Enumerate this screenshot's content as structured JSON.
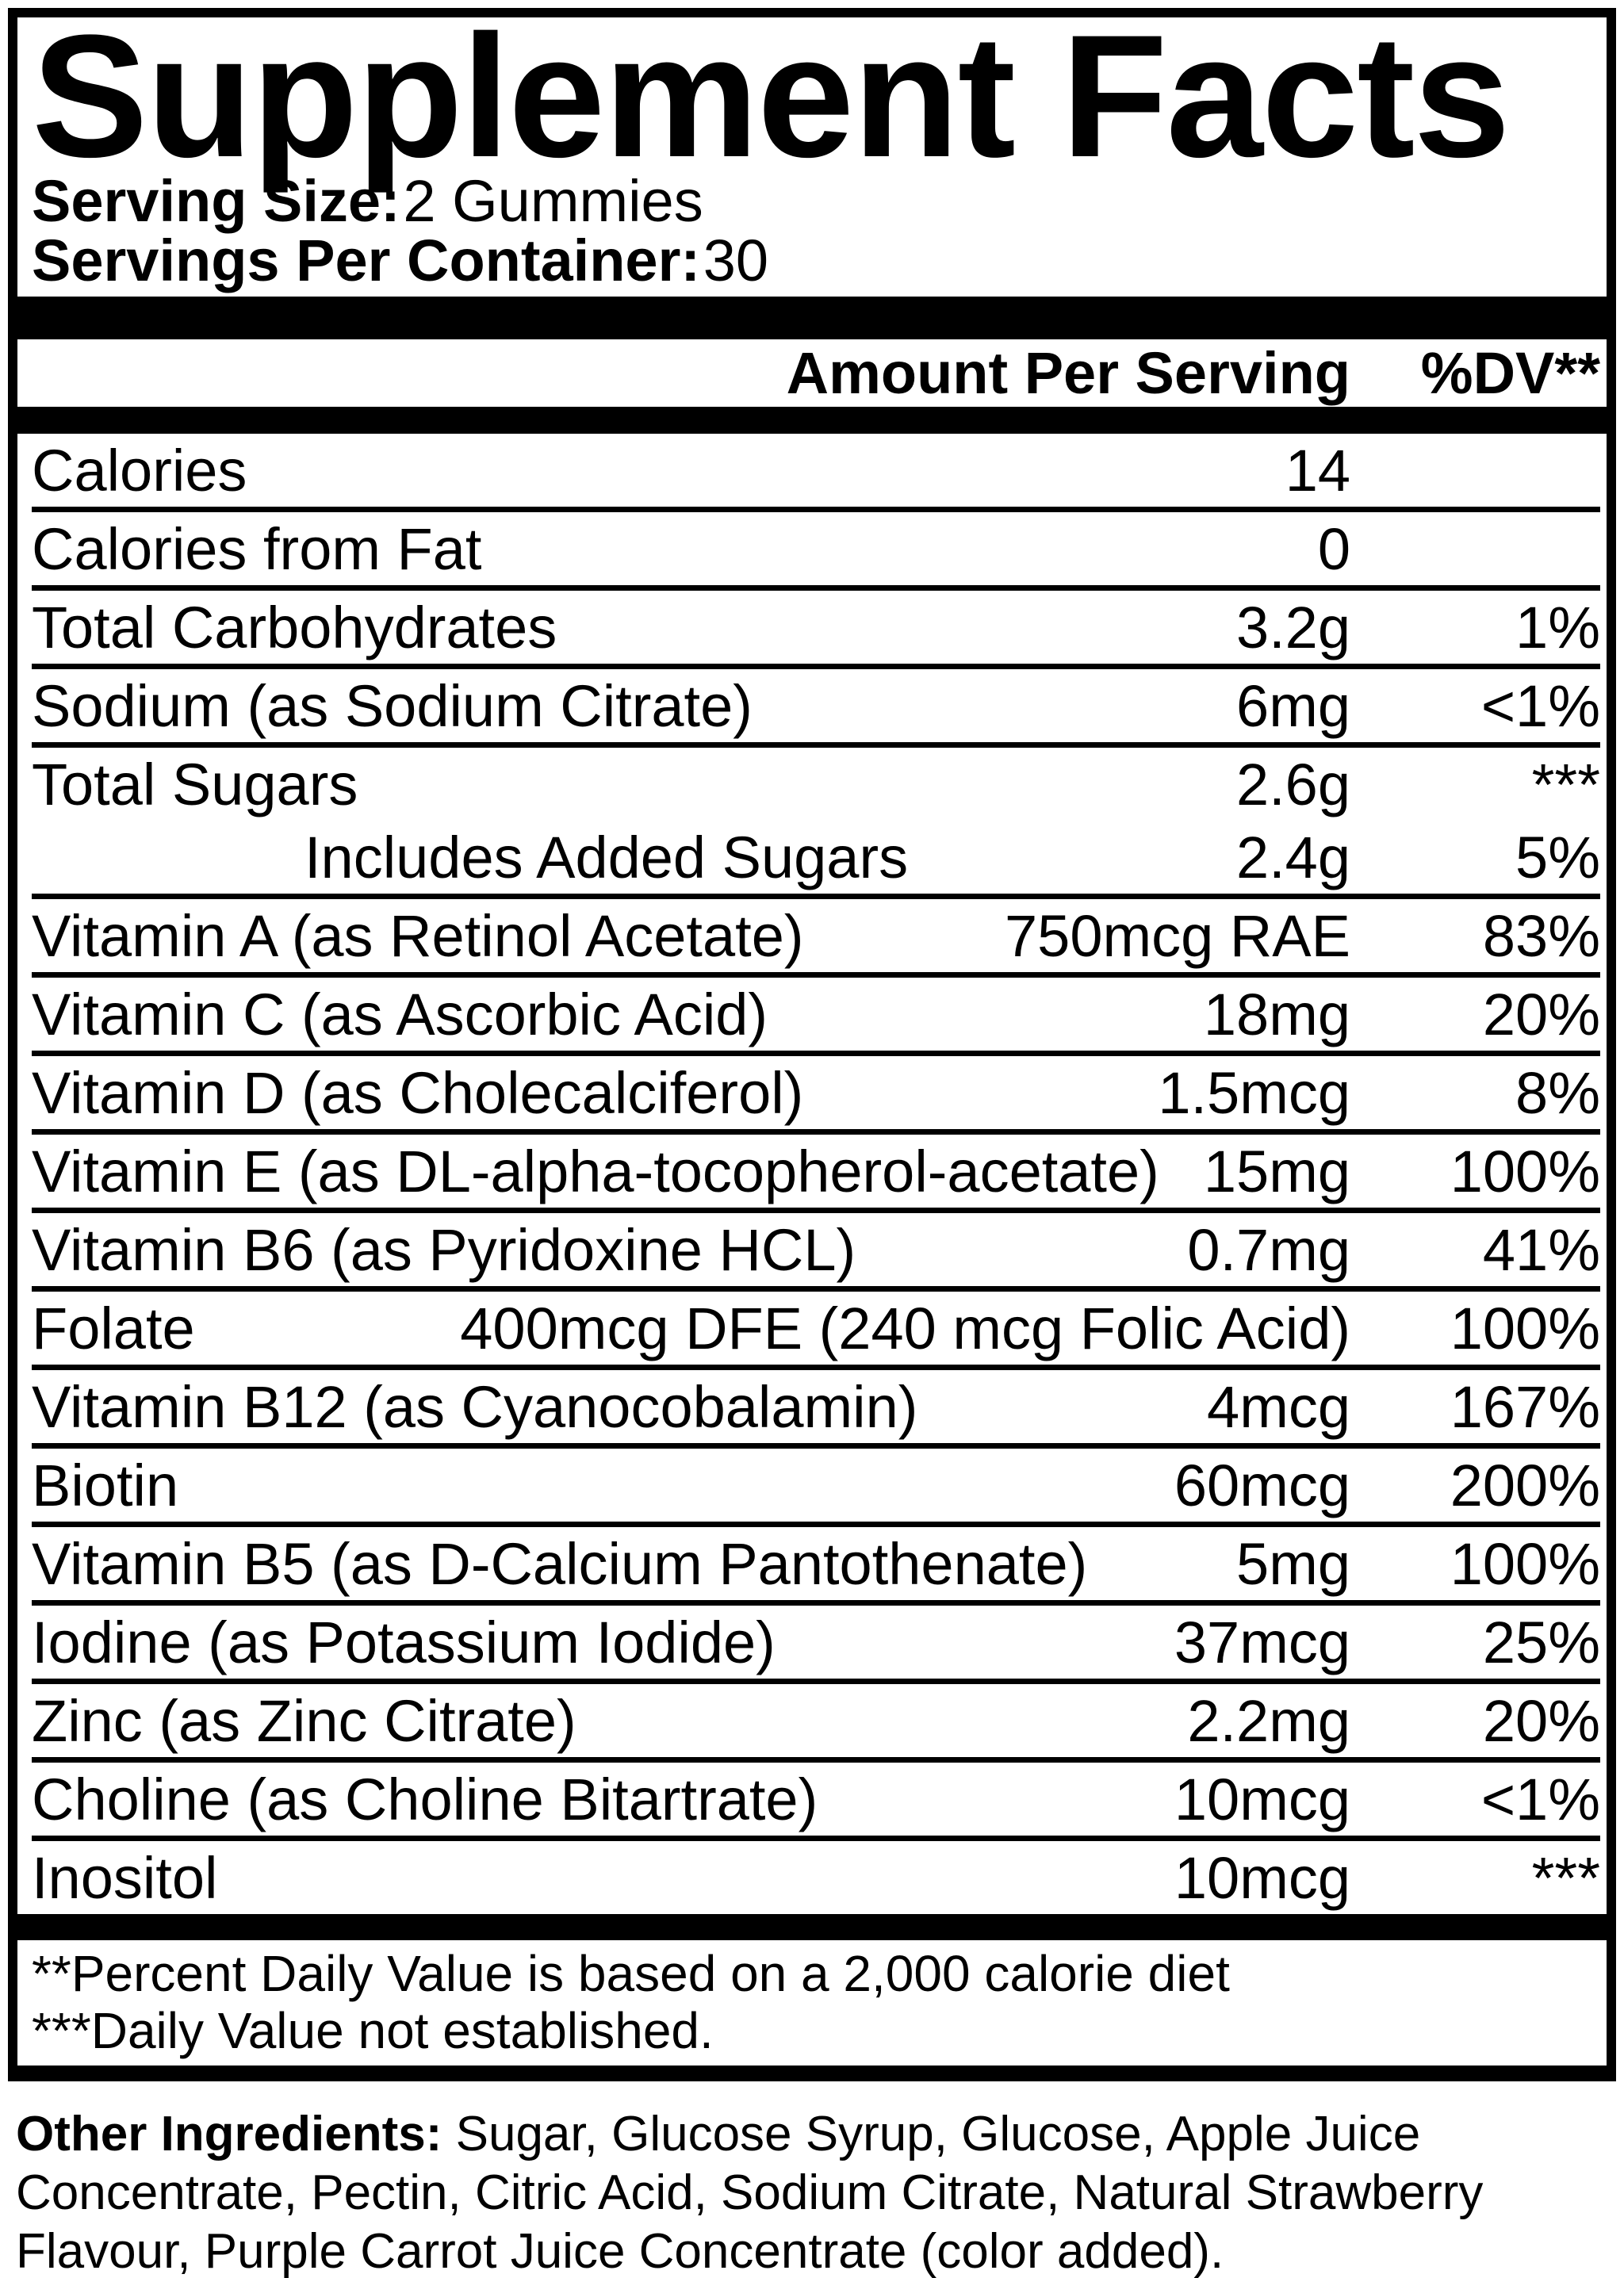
{
  "colors": {
    "text": "#000000",
    "background": "#ffffff"
  },
  "title": "Supplement Facts",
  "serving": {
    "size_label": "Serving Size:",
    "size_value": "2 Gummies",
    "per_container_label": "Servings Per Container:",
    "per_container_value": "30"
  },
  "table": {
    "amount_header": "Amount Per Serving",
    "dv_header": "%DV**",
    "rows": [
      {
        "name": "Calories",
        "amount": "14",
        "dv": "",
        "indent": false,
        "rule_after": true
      },
      {
        "name": "Calories from Fat",
        "amount": "0",
        "dv": "",
        "indent": false,
        "rule_after": true
      },
      {
        "name": "Total Carbohydrates",
        "amount": "3.2g",
        "dv": "1%",
        "indent": false,
        "rule_after": true
      },
      {
        "name": "Sodium (as Sodium Citrate)",
        "amount": "6mg",
        "dv": "<1%",
        "indent": false,
        "rule_after": true
      },
      {
        "name": "Total Sugars",
        "amount": "2.6g",
        "dv": "***",
        "indent": false,
        "rule_after": false
      },
      {
        "name": "Includes Added Sugars",
        "amount": "2.4g",
        "dv": "5%",
        "indent": true,
        "rule_after": true
      },
      {
        "name": "Vitamin A (as Retinol Acetate)",
        "amount": "750mcg RAE",
        "dv": "83%",
        "indent": false,
        "rule_after": true
      },
      {
        "name": "Vitamin C (as Ascorbic Acid)",
        "amount": "18mg",
        "dv": "20%",
        "indent": false,
        "rule_after": true
      },
      {
        "name": "Vitamin D (as Cholecalciferol)",
        "amount": "1.5mcg",
        "dv": "8%",
        "indent": false,
        "rule_after": true
      },
      {
        "name": "Vitamin E (as DL-alpha-tocopherol-acetate)",
        "amount": "15mg",
        "dv": "100%",
        "indent": false,
        "rule_after": true
      },
      {
        "name": "Vitamin B6 (as Pyridoxine HCL)",
        "amount": "0.7mg",
        "dv": "41%",
        "indent": false,
        "rule_after": true
      },
      {
        "name": "Folate",
        "amount": "400mcg DFE (240 mcg Folic Acid)",
        "dv": "100%",
        "indent": false,
        "rule_after": true
      },
      {
        "name": "Vitamin B12 (as Cyanocobalamin)",
        "amount": "4mcg",
        "dv": "167%",
        "indent": false,
        "rule_after": true
      },
      {
        "name": "Biotin",
        "amount": "60mcg",
        "dv": "200%",
        "indent": false,
        "rule_after": true
      },
      {
        "name": "Vitamin B5 (as D-Calcium Pantothenate)",
        "amount": "5mg",
        "dv": "100%",
        "indent": false,
        "rule_after": true
      },
      {
        "name": "Iodine (as Potassium Iodide)",
        "amount": "37mcg",
        "dv": "25%",
        "indent": false,
        "rule_after": true
      },
      {
        "name": "Zinc (as Zinc Citrate)",
        "amount": "2.2mg",
        "dv": "20%",
        "indent": false,
        "rule_after": true
      },
      {
        "name": "Choline (as Choline Bitartrate)",
        "amount": "10mcg",
        "dv": "<1%",
        "indent": false,
        "rule_after": true
      },
      {
        "name": "Inositol",
        "amount": "10mcg",
        "dv": "***",
        "indent": false,
        "rule_after": false
      }
    ]
  },
  "footnotes": {
    "line1": "**Percent Daily Value is based on a 2,000 calorie diet",
    "line2": "***Daily Value not established."
  },
  "other_ingredients": {
    "label": "Other Ingredients:",
    "text": " Sugar, Glucose Syrup, Glucose, Apple Juice Concentrate, Pectin, Citric Acid, Sodium Citrate, Natural Strawberry Flavour, Purple Carrot Juice Concentrate (color added)."
  }
}
